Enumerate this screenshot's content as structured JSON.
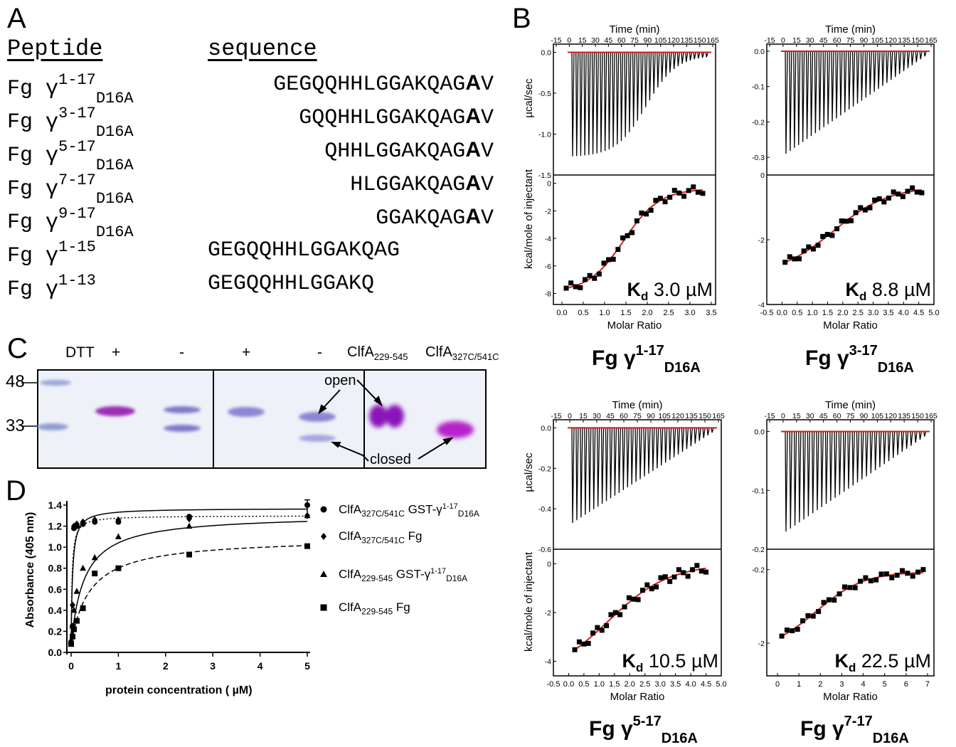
{
  "panelA": {
    "letter": "A",
    "header_peptide": "Peptide",
    "header_sequence": "sequence",
    "rows": [
      {
        "prefix": "Fg γ",
        "sup": "1-17",
        "sub": "D16A",
        "seq_main": "GEGQQHHLGGAKQAG",
        "seq_bold": "A",
        "seq_tail": "V"
      },
      {
        "prefix": "Fg γ",
        "sup": "3-17",
        "sub": "D16A",
        "seq_main": "GQQHHLGGAKQAG",
        "seq_bold": "A",
        "seq_tail": "V"
      },
      {
        "prefix": "Fg γ",
        "sup": "5-17",
        "sub": "D16A",
        "seq_main": "QHHLGGAKQAG",
        "seq_bold": "A",
        "seq_tail": "V"
      },
      {
        "prefix": "Fg γ",
        "sup": "7-17",
        "sub": "D16A",
        "seq_main": "HLGGAKQAG",
        "seq_bold": "A",
        "seq_tail": "V"
      },
      {
        "prefix": "Fg γ",
        "sup": "9-17",
        "sub": "D16A",
        "seq_main": "GGAKQAG",
        "seq_bold": "A",
        "seq_tail": "V"
      },
      {
        "prefix": "Fg γ",
        "sup": "1-15",
        "sub": "",
        "seq_main": "GEGQQHHLGGAKQAG",
        "seq_bold": "",
        "seq_tail": ""
      },
      {
        "prefix": "Fg γ",
        "sup": "1-13",
        "sub": "",
        "seq_main": "GEGQQHHLGGAKQ",
        "seq_bold": "",
        "seq_tail": ""
      }
    ]
  },
  "panelB": {
    "letter": "B",
    "time_label": "Time (min)",
    "time_ticks": [
      "-15",
      "0",
      "15",
      "30",
      "45",
      "60",
      "75",
      "90",
      "105",
      "120",
      "135",
      "150",
      "165"
    ],
    "ylabel_top": "µcal/sec",
    "ylabel_bottom": "kcal/mole of injectant",
    "xlabel": "Molar Ratio",
    "plots": [
      {
        "title_prefix": "Fg γ",
        "title_sup": "1-17",
        "title_sub": "D16A",
        "kd_label": "K",
        "kd_sub": "d",
        "kd_value": " 3.0 µM",
        "top_ticks": [
          "0.0",
          "-0.5",
          "-1.0",
          "-1.5"
        ],
        "top_range": [
          -1.5,
          0.1
        ],
        "bottom_ticks": [
          "0",
          "-2",
          "-4",
          "-6",
          "-8"
        ],
        "bottom_range": [
          -8.8,
          0.6
        ],
        "x_ticks": [
          "0.0",
          "0.5",
          "1.0",
          "1.5",
          "2.0",
          "2.5",
          "3.0",
          "3.5"
        ],
        "x_range": [
          -0.2,
          3.6
        ]
      },
      {
        "title_prefix": "Fg γ",
        "title_sup": "3-17",
        "title_sub": "D16A",
        "kd_label": "K",
        "kd_sub": "d",
        "kd_value": " 8.8 µM",
        "top_ticks": [
          "0.0",
          "-0.1",
          "-0.2",
          "-0.3"
        ],
        "top_range": [
          -0.35,
          0.02
        ],
        "bottom_ticks": [
          "0",
          "-2",
          "-4"
        ],
        "bottom_range": [
          -4.0,
          0.0
        ],
        "x_ticks": [
          "-0.5",
          "0.0",
          "0.5",
          "1.0",
          "1.5",
          "2.0",
          "2.5",
          "3.0",
          "3.5",
          "4.0",
          "4.5",
          "5.0"
        ],
        "x_range": [
          -0.5,
          5.0
        ]
      },
      {
        "title_prefix": "Fg γ",
        "title_sup": "5-17",
        "title_sub": "D16A",
        "kd_label": "K",
        "kd_sub": "d",
        "kd_value": " 10.5 µM",
        "top_ticks": [
          "0.0",
          "-0.2",
          "-0.4",
          "-0.6"
        ],
        "top_range": [
          -0.6,
          0.04
        ],
        "bottom_ticks": [
          "0",
          "-2",
          "-4"
        ],
        "bottom_range": [
          -4.6,
          0.6
        ],
        "x_ticks": [
          "-0.5",
          "0.0",
          "0.5",
          "1.0",
          "1.5",
          "2.0",
          "2.5",
          "3.0",
          "3.5",
          "4.0",
          "4.5",
          "5.0"
        ],
        "x_range": [
          -0.5,
          5.0
        ]
      },
      {
        "title_prefix": "Fg γ",
        "title_sup": "7-17",
        "title_sub": "D16A",
        "kd_label": "K",
        "kd_sub": "d",
        "kd_value": " 22.5 µM",
        "top_ticks": [
          "0.0",
          "-0.1",
          "-0.2"
        ],
        "top_range": [
          -0.2,
          0.02
        ],
        "bottom_ticks": [
          "-0.2",
          "-2"
        ],
        "bottom_range": [
          -2.8,
          0.3
        ],
        "x_ticks": [
          "0",
          "1",
          "2",
          "3",
          "4",
          "5",
          "6",
          "7"
        ],
        "x_range": [
          -0.5,
          7.3
        ]
      }
    ]
  },
  "panelC": {
    "letter": "C",
    "dtt_label": "DTT",
    "dtt_signs": [
      "+",
      "-",
      "+",
      "-"
    ],
    "lane_label_1": "ClfA",
    "lane_label_1_sub": "229-545",
    "lane_label_2": "ClfA",
    "lane_label_2_sub": "327C/541C",
    "mw_markers": [
      "48",
      "33"
    ],
    "open_label": "open",
    "closed_label": "closed"
  },
  "panelD": {
    "letter": "D",
    "chart_data": {
      "type": "scatter",
      "xlabel": "protein concentration ( µM)",
      "ylabel": "Absorbance (405 nm)",
      "xlim": [
        0,
        5
      ],
      "ylim": [
        0.0,
        1.4
      ],
      "x_ticks": [
        "0",
        "1",
        "2",
        "3",
        "4",
        "5"
      ],
      "y_ticks": [
        "0.0",
        "0.2",
        "0.4",
        "0.6",
        "0.8",
        "1.0",
        "1.2",
        "1.4"
      ],
      "series": [
        {
          "name": "ClfA327C/541C GST-γ1-17D16A",
          "marker": "circle",
          "line": "solid",
          "bmax": 1.37,
          "kd": 0.03,
          "x": [
            0,
            0.03,
            0.06,
            0.12,
            0.25,
            0.5,
            1.0,
            2.5,
            5.0
          ],
          "y": [
            0.1,
            0.25,
            1.18,
            1.2,
            1.22,
            1.24,
            1.24,
            1.29,
            1.4
          ]
        },
        {
          "name": "ClfA327C/541C Fg",
          "marker": "diamond",
          "line": "dotted",
          "bmax": 1.3,
          "kd": 0.02,
          "x": [
            0,
            0.03,
            0.06,
            0.12,
            0.25,
            0.5,
            1.0,
            2.5,
            5.0
          ],
          "y": [
            0.1,
            0.45,
            1.2,
            1.22,
            1.24,
            1.26,
            1.26,
            1.27,
            1.3
          ]
        },
        {
          "name": "ClfA229-545 GST-γ1-17D16A",
          "marker": "triangle",
          "line": "solid",
          "bmax": 1.31,
          "kd": 0.28,
          "x": [
            0,
            0.03,
            0.06,
            0.12,
            0.25,
            0.5,
            1.0,
            2.5,
            5.0
          ],
          "y": [
            0.1,
            0.25,
            0.4,
            0.58,
            0.8,
            0.9,
            1.1,
            1.2,
            1.3
          ]
        },
        {
          "name": "ClfA229-545 Fg",
          "marker": "square",
          "line": "dashed",
          "bmax": 1.09,
          "kd": 0.4,
          "x": [
            0,
            0.03,
            0.06,
            0.12,
            0.25,
            0.5,
            1.0,
            2.5,
            5.0
          ],
          "y": [
            0.08,
            0.15,
            0.22,
            0.3,
            0.42,
            0.75,
            0.8,
            0.93,
            1.01
          ]
        }
      ]
    },
    "legend": [
      {
        "name": "ClfA",
        "sub1": "327C/541C",
        "rest": " GST-γ",
        "sup": "1-17",
        "sub2": "D16A"
      },
      {
        "name": "ClfA",
        "sub1": "327C/541C",
        "rest": " Fg",
        "sup": "",
        "sub2": ""
      },
      {
        "name": "ClfA",
        "sub1": "229-545",
        "rest": " GST-γ",
        "sup": "1-17",
        "sub2": "D16A"
      },
      {
        "name": "ClfA",
        "sub1": "229-545",
        "rest": " Fg",
        "sup": "",
        "sub2": ""
      }
    ]
  }
}
